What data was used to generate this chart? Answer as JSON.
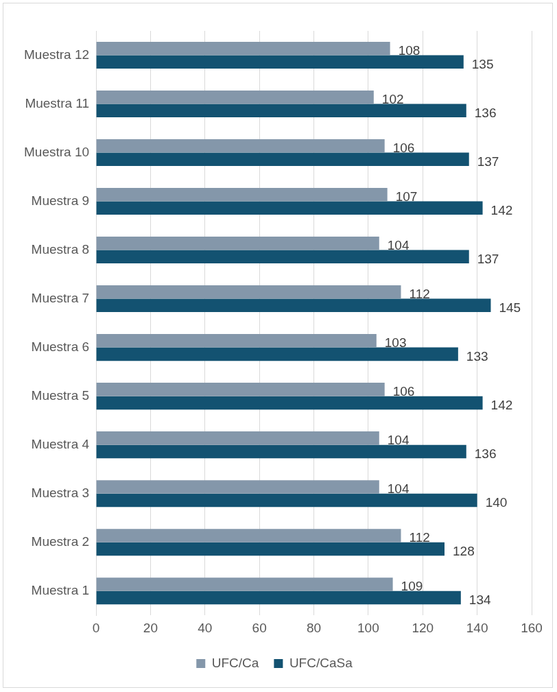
{
  "chart_data": {
    "type": "bar",
    "orientation": "horizontal",
    "categories": [
      "Muestra 12",
      "Muestra 11",
      "Muestra 10",
      "Muestra 9",
      "Muestra 8",
      "Muestra 7",
      "Muestra 6",
      "Muestra 5",
      "Muestra 4",
      "Muestra 3",
      "Muestra 2",
      "Muestra 1"
    ],
    "series": [
      {
        "name": "UFC/Ca",
        "color": "#8497aa",
        "values": [
          108,
          102,
          106,
          107,
          104,
          112,
          103,
          106,
          104,
          104,
          112,
          109
        ]
      },
      {
        "name": "UFC/CaSa",
        "color": "#135271",
        "values": [
          135,
          136,
          137,
          142,
          137,
          145,
          133,
          142,
          136,
          140,
          128,
          134
        ]
      }
    ],
    "xlim": [
      0,
      160
    ],
    "xticks": [
      0,
      20,
      40,
      60,
      80,
      100,
      120,
      140,
      160
    ],
    "grid": "x",
    "legend": "bottom",
    "data_labels": true
  }
}
